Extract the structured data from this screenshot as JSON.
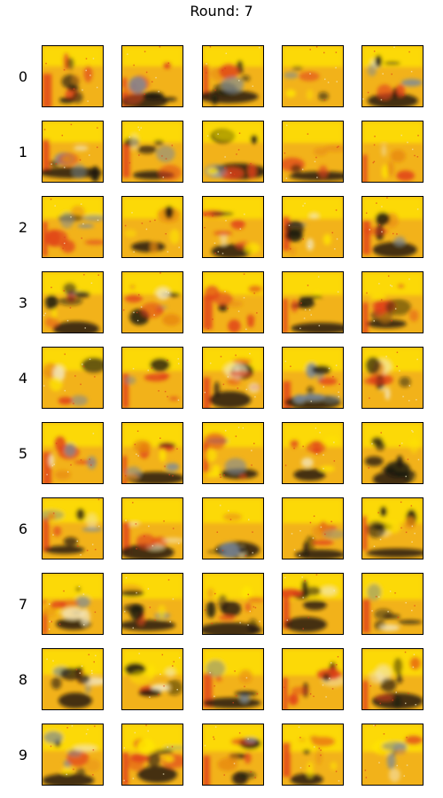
{
  "figure": {
    "title": "Round: 7",
    "row_labels": [
      "0",
      "1",
      "2",
      "3",
      "4",
      "5",
      "6",
      "7",
      "8",
      "9"
    ],
    "columns_per_row": 5
  },
  "palette": {
    "background": "#ffffff",
    "tile_base": "#f2b21a",
    "highlight": "#ffe600",
    "warm_red": "#e0401a",
    "orange": "#e88a10",
    "dark": "#1a140e",
    "gray_blue": "#7c8a9a",
    "pale": "#f3e7c0",
    "frame": "#000000"
  }
}
